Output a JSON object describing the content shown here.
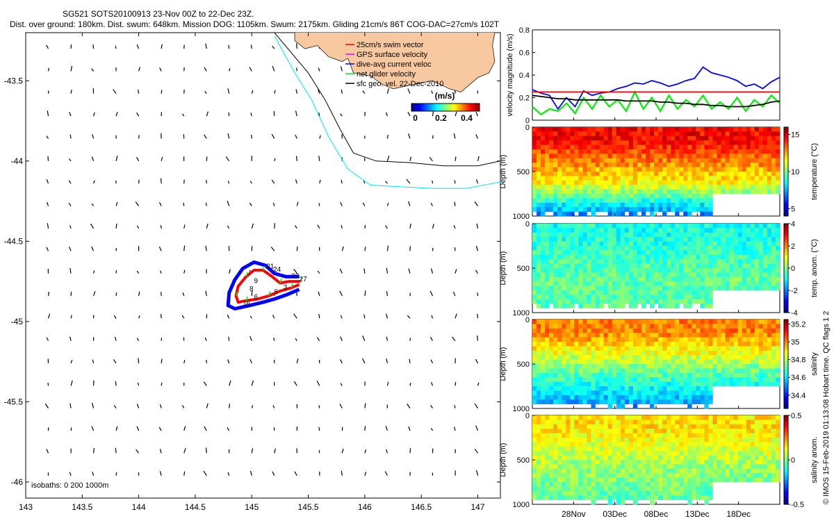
{
  "title_line1": "SG521 SOTS20100913 23-Nov 00Z to 22-Dec 23Z.",
  "title_line2": "Dist. over ground: 180km. Dist. swum: 648km. Mission DOG: 1105km. Swum: 2175km. Gliding 21cm/s 86T COG-DAC=27cm/s 102T",
  "footer_text": "© IMOS 15-Feb-2019 01:13:08 Hobart time. QC flags 1 2",
  "colors": {
    "land": "#f8c9a0",
    "isobath_200": "#000000",
    "isobath_1000": "#00e5ff",
    "swim": "#ff0000",
    "gps": "#ff00ff",
    "dac": "#0000ff",
    "net": "#00ee00",
    "geo": "#000000"
  },
  "chart_data": [
    {
      "type": "scatter",
      "name": "map",
      "xlim": [
        143,
        147.2
      ],
      "ylim": [
        -46.1,
        -43.2
      ],
      "xticks": [
        "143",
        "143.5",
        "144",
        "144.5",
        "145",
        "145.5",
        "146",
        "146.5",
        "147"
      ],
      "xtick_values": [
        143,
        143.5,
        144,
        144.5,
        145,
        145.5,
        146,
        146.5,
        147
      ],
      "yticks": [
        "-43.5",
        "-44",
        "-44.5",
        "-45",
        "-45.5",
        "-46"
      ],
      "ytick_values": [
        -43.5,
        -44,
        -44.5,
        -45,
        -45.5,
        -46
      ],
      "isobath_label": "isobaths: 0   200  1000m",
      "legend": [
        {
          "label": "25cm/s swim vector",
          "color": "#ff0000"
        },
        {
          "label": "GPS surface velocity",
          "color": "#ff00ff"
        },
        {
          "label": "dive-avg current veloc",
          "color": "#0000ff"
        },
        {
          "label": "net glider velocity",
          "color": "#00ee00"
        },
        {
          "label": "sfc geo. vel. 22-Dec-2010",
          "color": "#000000"
        }
      ],
      "colorbar": {
        "title": "(m/s)",
        "ticks": [
          "0",
          "0.2",
          "0.4"
        ],
        "tick_values": [
          0,
          0.2,
          0.4
        ],
        "range": [
          -0.03,
          0.5
        ]
      },
      "isobath_200": [
        [
          145.2,
          -43.2
        ],
        [
          145.5,
          -43.45
        ],
        [
          145.65,
          -43.62
        ],
        [
          145.78,
          -43.8
        ],
        [
          145.9,
          -43.95
        ],
        [
          146.1,
          -44.0
        ],
        [
          146.4,
          -44.01
        ],
        [
          146.7,
          -44.03
        ],
        [
          147.0,
          -44.03
        ],
        [
          147.2,
          -44.0
        ]
      ],
      "isobath_1000": [
        [
          145.2,
          -43.22
        ],
        [
          145.38,
          -43.45
        ],
        [
          145.53,
          -43.62
        ],
        [
          145.68,
          -43.85
        ],
        [
          145.85,
          -44.05
        ],
        [
          146.05,
          -44.15
        ],
        [
          146.3,
          -44.16
        ],
        [
          146.6,
          -44.17
        ],
        [
          146.9,
          -44.17
        ],
        [
          147.2,
          -44.13
        ]
      ],
      "coast": [
        [
          145.38,
          -43.2
        ],
        [
          145.38,
          -43.25
        ],
        [
          145.47,
          -43.3
        ],
        [
          145.58,
          -43.28
        ],
        [
          145.68,
          -43.35
        ],
        [
          145.8,
          -43.38
        ],
        [
          145.85,
          -43.36
        ],
        [
          145.9,
          -43.45
        ],
        [
          146.05,
          -43.47
        ],
        [
          146.15,
          -43.52
        ],
        [
          146.25,
          -43.55
        ],
        [
          146.45,
          -43.52
        ],
        [
          146.6,
          -43.5
        ],
        [
          146.75,
          -43.55
        ],
        [
          146.85,
          -43.57
        ],
        [
          147.0,
          -43.48
        ],
        [
          147.1,
          -43.45
        ],
        [
          147.15,
          -43.38
        ],
        [
          147.13,
          -43.28
        ],
        [
          147.15,
          -43.2
        ]
      ],
      "track_inner": [
        [
          145.43,
          -44.75
        ],
        [
          145.33,
          -44.75
        ],
        [
          145.25,
          -44.76
        ],
        [
          145.18,
          -44.72
        ],
        [
          145.1,
          -44.68
        ],
        [
          145.02,
          -44.68
        ],
        [
          144.95,
          -44.72
        ],
        [
          144.88,
          -44.78
        ],
        [
          144.86,
          -44.84
        ],
        [
          144.88,
          -44.88
        ],
        [
          144.95,
          -44.87
        ],
        [
          145.05,
          -44.86
        ],
        [
          145.15,
          -44.84
        ],
        [
          145.25,
          -44.81
        ],
        [
          145.35,
          -44.79
        ],
        [
          145.42,
          -44.77
        ]
      ],
      "track_outer": [
        [
          145.42,
          -44.72
        ],
        [
          145.3,
          -44.72
        ],
        [
          145.2,
          -44.7
        ],
        [
          145.12,
          -44.65
        ],
        [
          145.02,
          -44.63
        ],
        [
          144.92,
          -44.67
        ],
        [
          144.85,
          -44.74
        ],
        [
          144.8,
          -44.82
        ],
        [
          144.79,
          -44.9
        ],
        [
          144.85,
          -44.92
        ],
        [
          144.98,
          -44.9
        ],
        [
          145.1,
          -44.88
        ],
        [
          145.2,
          -44.86
        ],
        [
          145.32,
          -44.83
        ],
        [
          145.42,
          -44.8
        ]
      ],
      "track_labels": [
        {
          "t": "21",
          "x": 145.13,
          "y": -44.67
        },
        {
          "t": "24",
          "x": 145.19,
          "y": -44.69
        },
        {
          "t": "23",
          "x": 145.35,
          "y": -44.73
        },
        {
          "t": "27",
          "x": 145.42,
          "y": -44.75
        },
        {
          "t": "9",
          "x": 145.02,
          "y": -44.76
        },
        {
          "t": "8",
          "x": 144.98,
          "y": -44.81
        },
        {
          "t": "6",
          "x": 145.02,
          "y": -44.86
        },
        {
          "t": "16",
          "x": 144.92,
          "y": -44.9
        },
        {
          "t": "5",
          "x": 145.2,
          "y": -44.83
        },
        {
          "t": "3",
          "x": 145.28,
          "y": -44.8
        }
      ]
    },
    {
      "type": "line",
      "name": "velocity",
      "ylabel": "velocity magnitude (m/s)",
      "ylim": [
        0,
        0.8
      ],
      "yticks": [
        "0",
        "0.2",
        "0.4",
        "0.6",
        "0.8"
      ],
      "ytick_values": [
        0,
        0.2,
        0.4,
        0.6,
        0.8
      ],
      "x": [
        0,
        1,
        2,
        3,
        4,
        5,
        6,
        7,
        8,
        9,
        10,
        11,
        12,
        13,
        14,
        15,
        16,
        17,
        18,
        19,
        20,
        21,
        22,
        23,
        24,
        25,
        26,
        27,
        28,
        29
      ],
      "series": [
        {
          "name": "",
          "color": "#0000ff",
          "values": [
            0.27,
            0.24,
            0.22,
            0.1,
            0.2,
            0.12,
            0.26,
            0.22,
            0.24,
            0.25,
            0.28,
            0.3,
            0.33,
            0.32,
            0.35,
            0.33,
            0.3,
            0.32,
            0.35,
            0.37,
            0.47,
            0.42,
            0.4,
            0.38,
            0.35,
            0.3,
            0.32,
            0.28,
            0.34,
            0.38
          ]
        },
        {
          "name": "",
          "color": "#00ee00",
          "values": [
            0.12,
            0.05,
            0.1,
            0.08,
            0.15,
            0.06,
            0.2,
            0.1,
            0.22,
            0.12,
            0.18,
            0.08,
            0.25,
            0.1,
            0.2,
            0.08,
            0.22,
            0.1,
            0.18,
            0.12,
            0.22,
            0.1,
            0.16,
            0.1,
            0.2,
            0.08,
            0.18,
            0.12,
            0.22,
            0.15
          ]
        },
        {
          "name": "",
          "color": "#000000",
          "values": [
            0.22,
            0.21,
            0.2,
            0.19,
            0.19,
            0.18,
            0.18,
            0.18,
            0.18,
            0.18,
            0.18,
            0.17,
            0.17,
            0.17,
            0.17,
            0.16,
            0.16,
            0.15,
            0.15,
            0.14,
            0.14,
            0.13,
            0.13,
            0.12,
            0.12,
            0.12,
            0.13,
            0.14,
            0.16,
            0.17
          ]
        },
        {
          "name": "",
          "color": "#ff0000",
          "values": [
            0.25,
            0.25,
            0.25,
            0.25,
            0.25,
            0.25,
            0.25,
            0.25,
            0.25,
            0.25,
            0.25,
            0.25,
            0.25,
            0.25,
            0.25,
            0.25,
            0.25,
            0.25,
            0.25,
            0.25,
            0.25,
            0.25,
            0.25,
            0.25,
            0.25,
            0.25,
            0.25,
            0.25,
            0.25,
            0.25
          ]
        }
      ]
    },
    {
      "type": "heatmap",
      "name": "temperature",
      "ylabel": "Depth (m)",
      "clabel": "temperature (°C)",
      "clim": [
        4,
        16
      ],
      "cticks": [
        "5",
        "10",
        "15"
      ],
      "ctick_values": [
        5,
        10,
        15
      ],
      "yticks": [
        "0",
        "500",
        "1000"
      ],
      "ytick_values": [
        0,
        500,
        1000
      ],
      "top_value": 14.5,
      "mid_value": 11.5,
      "deep_value": 6.5
    },
    {
      "type": "heatmap",
      "name": "temp_anomaly",
      "ylabel": "Depth (m)",
      "clabel": "temp. anom. (°C)",
      "clim": [
        -4,
        4
      ],
      "cticks": [
        "4",
        "2",
        "0",
        "-2",
        "-4"
      ],
      "ctick_values": [
        4,
        2,
        0,
        -2,
        -4
      ],
      "yticks": [
        "0",
        "500",
        "1000"
      ],
      "ytick_values": [
        0,
        500,
        1000
      ],
      "top_value": -0.8,
      "mid_value": -0.2,
      "deep_value": -0.4
    },
    {
      "type": "heatmap",
      "name": "salinity",
      "ylabel": "Depth (m)",
      "clabel": "salinity",
      "clim": [
        34.25,
        35.25
      ],
      "cticks": [
        "35.2",
        "35",
        "34.8",
        "34.6",
        "34.4"
      ],
      "ctick_values": [
        35.2,
        35,
        34.8,
        34.6,
        34.4
      ],
      "yticks": [
        "0",
        "500",
        "1000"
      ],
      "ytick_values": [
        0,
        500,
        1000
      ],
      "top_value": 35.0,
      "mid_value": 34.7,
      "deep_value": 34.5
    },
    {
      "type": "heatmap",
      "name": "salinity_anomaly",
      "ylabel": "Depth (m)",
      "clabel": "salinity anom.",
      "clim": [
        -0.5,
        0.5
      ],
      "cticks": [
        "0.5",
        "0",
        "-0.5"
      ],
      "ctick_values": [
        0.5,
        0,
        -0.5
      ],
      "yticks": [
        "0",
        "500",
        "1000"
      ],
      "ytick_values": [
        0,
        500,
        1000
      ],
      "top_value": 0.15,
      "mid_value": 0.02,
      "deep_value": -0.05
    }
  ],
  "time_axis": {
    "ticks": [
      "28Nov",
      "03Dec",
      "08Dec",
      "13Dec",
      "18Dec"
    ]
  }
}
